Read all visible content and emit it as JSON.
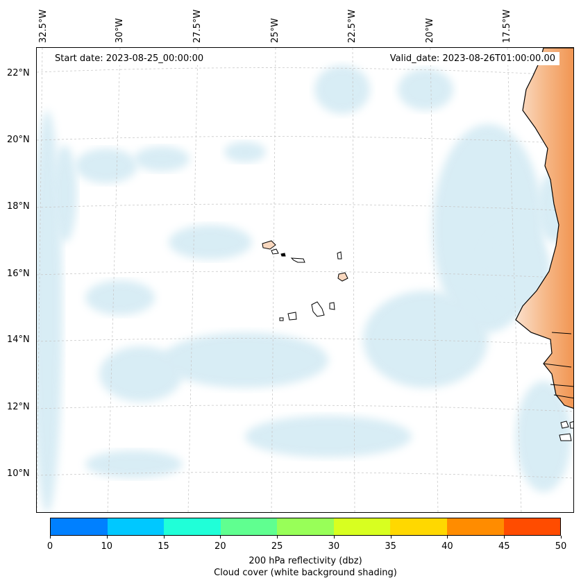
{
  "map": {
    "start_date": "Start date: 2023-08-25_00:00:00",
    "valid_date": "Valid_date: 2023-08-26T01:00:00.00",
    "longitude_labels": [
      "32.5°W",
      "30°W",
      "27.5°W",
      "25°W",
      "22.5°W",
      "20°W",
      "17.5°W"
    ],
    "latitude_labels": [
      "22°N",
      "20°N",
      "18°N",
      "16°N",
      "14°N",
      "12°N",
      "10°N"
    ],
    "land_color": "#f5a060",
    "cloud_color": "#a8d6e8"
  },
  "colorbar": {
    "ticks": [
      "0",
      "10",
      "15",
      "20",
      "25",
      "30",
      "35",
      "40",
      "45",
      "50"
    ],
    "colors": [
      "#0080ff",
      "#00c8ff",
      "#20ffd8",
      "#60ff90",
      "#98ff58",
      "#d8ff20",
      "#ffd800",
      "#ff8c00",
      "#ff4c00"
    ],
    "label_line1": "200 hPa reflectivity (dbz)",
    "label_line2": "Cloud cover (white background shading)"
  }
}
